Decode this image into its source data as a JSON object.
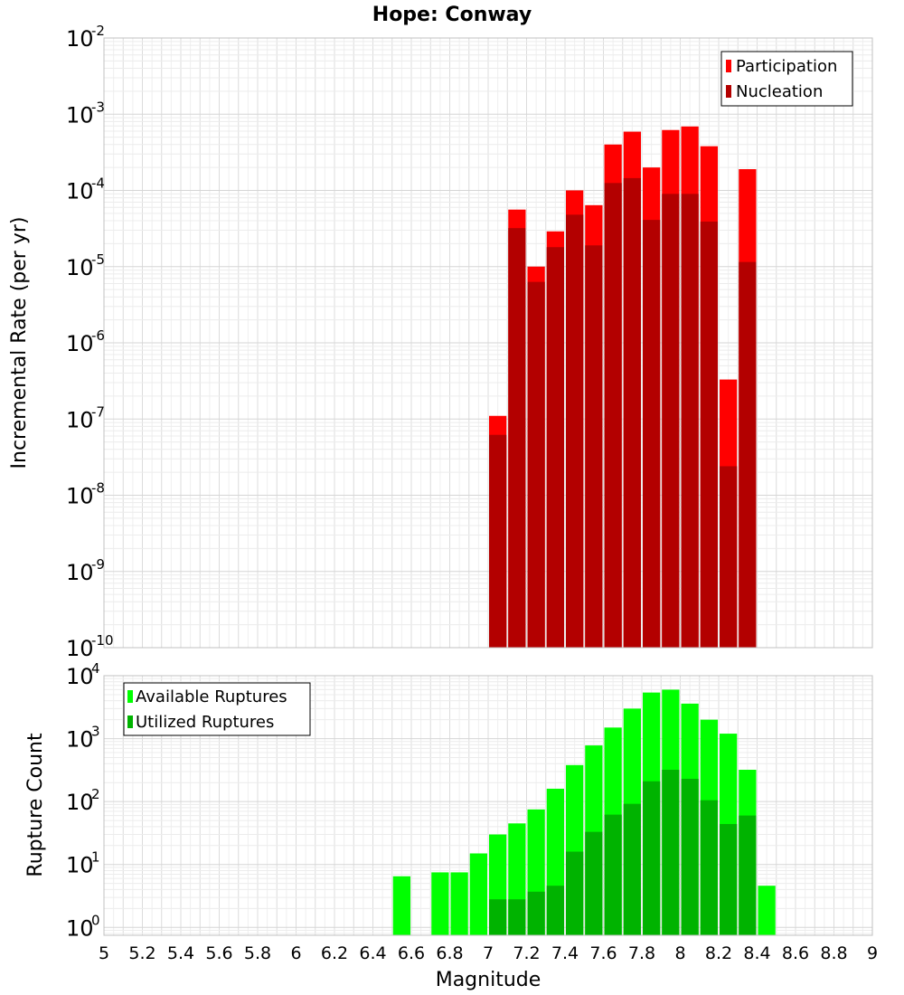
{
  "chart_data": [
    {
      "type": "bar",
      "title": "Hope: Conway",
      "xlabel": "",
      "ylabel": "Incremental Rate (per yr)",
      "yscale": "log",
      "xlim": [
        5,
        9
      ],
      "ylim": [
        1e-10,
        0.01
      ],
      "ytick_exponents": [
        -10,
        -9,
        -8,
        -7,
        -6,
        -5,
        -4,
        -3,
        -2
      ],
      "grid": true,
      "legend_position": "top-right",
      "bin_width": 0.1,
      "x": [
        7.05,
        7.15,
        7.25,
        7.35,
        7.45,
        7.55,
        7.65,
        7.75,
        7.85,
        7.95,
        8.05,
        8.15,
        8.25,
        8.35
      ],
      "series": [
        {
          "name": "Participation",
          "color": "#ff0000",
          "values": [
            1.1e-07,
            5.6e-05,
            1e-05,
            2.9e-05,
            0.0001,
            6.4e-05,
            0.0004,
            0.00059,
            0.0002,
            0.00062,
            0.00069,
            0.00038,
            3.3e-07,
            0.00019
          ]
        },
        {
          "name": "Nucleation",
          "color": "#b30000",
          "values": [
            6.2e-08,
            3.2e-05,
            6.3e-06,
            1.8e-05,
            4.8e-05,
            1.9e-05,
            0.000125,
            0.000145,
            4.1e-05,
            9e-05,
            9e-05,
            3.9e-05,
            2.4e-08,
            1.15e-05
          ]
        }
      ]
    },
    {
      "type": "bar",
      "xlabel": "Magnitude",
      "ylabel": "Rupture Count",
      "yscale": "log",
      "xlim": [
        5,
        9
      ],
      "ylim": [
        0.75,
        10000
      ],
      "ytick_exponents": [
        0,
        1,
        2,
        3,
        4
      ],
      "xticks": [
        "5",
        "5.2",
        "5.4",
        "5.6",
        "5.8",
        "6",
        "6.2",
        "6.4",
        "6.6",
        "6.8",
        "7",
        "7.2",
        "7.4",
        "7.6",
        "7.8",
        "8",
        "8.2",
        "8.4",
        "8.6",
        "8.8",
        "9"
      ],
      "grid": true,
      "legend_position": "top-left",
      "bin_width": 0.1,
      "series": [
        {
          "name": "Available Ruptures",
          "color": "#00ff00",
          "x": [
            6.55,
            6.75,
            6.85,
            6.95,
            7.05,
            7.15,
            7.25,
            7.35,
            7.45,
            7.55,
            7.65,
            7.75,
            7.85,
            7.95,
            8.05,
            8.15,
            8.25,
            8.35,
            8.45
          ],
          "values": [
            6.5,
            7.5,
            7.5,
            15,
            30,
            45,
            75,
            160,
            380,
            780,
            1500,
            3000,
            5400,
            6000,
            3600,
            2000,
            1200,
            320,
            4.6
          ]
        },
        {
          "name": "Utilized Ruptures",
          "color": "#00b300",
          "x": [
            7.05,
            7.15,
            7.25,
            7.35,
            7.45,
            7.55,
            7.65,
            7.75,
            7.85,
            7.95,
            8.05,
            8.15,
            8.25,
            8.35
          ],
          "values": [
            2.8,
            2.8,
            3.7,
            4.6,
            16,
            33,
            62,
            92,
            210,
            320,
            230,
            105,
            44,
            60
          ]
        }
      ]
    }
  ]
}
